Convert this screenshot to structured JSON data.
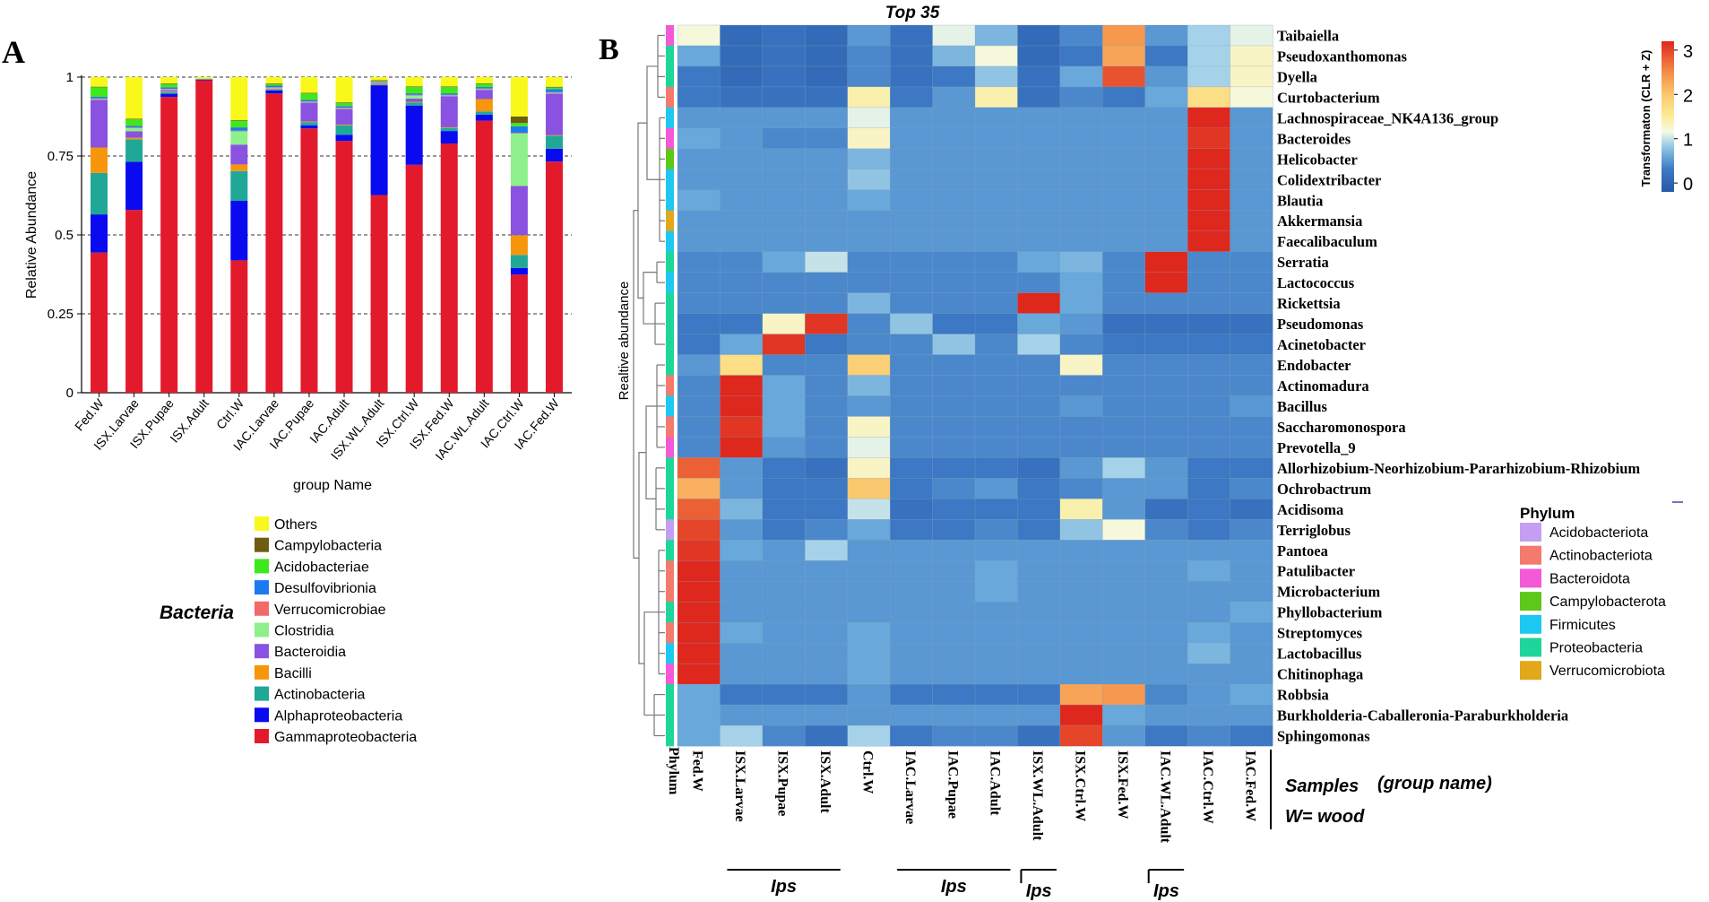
{
  "chart_data": [
    {
      "type": "bar",
      "panel_label": "A",
      "stacked": true,
      "ylabel": "Relative Abundance",
      "xlabel": "group Name",
      "ylim": [
        0,
        1
      ],
      "yticks": [
        "0",
        "0.25",
        "0.5",
        "0.75",
        "1"
      ],
      "legend_title": "Bacteria",
      "legend_placement": "bottom",
      "categories": [
        "Fed.W",
        "ISX.Larvae",
        "ISX.Pupae",
        "ISX.Adult",
        "Ctrl.W",
        "IAC.Larvae",
        "IAC.Pupae",
        "IAC.Adult",
        "ISX.WL.Adult",
        "ISX.Ctrl.W",
        "ISX.Fed.W",
        "IAC.WL.Adult",
        "IAC.Ctrl.W",
        "IAC.Fed.W"
      ],
      "series": [
        {
          "name": "Gammaproteobacteria",
          "color": "#e31a2c",
          "values": [
            0.44,
            0.57,
            0.94,
            0.99,
            0.4,
            0.95,
            0.84,
            0.8,
            0.63,
            0.73,
            0.8,
            0.88,
            0.36,
            0.72
          ]
        },
        {
          "name": "Alphaproteobacteria",
          "color": "#0a0af0",
          "values": [
            0.12,
            0.15,
            0.01,
            0.002,
            0.18,
            0.01,
            0.01,
            0.02,
            0.35,
            0.19,
            0.04,
            0.02,
            0.02,
            0.04
          ]
        },
        {
          "name": "Actinobacteria",
          "color": "#1fa898",
          "values": [
            0.13,
            0.07,
            0.005,
            0.002,
            0.09,
            0.002,
            0.01,
            0.03,
            0.002,
            0.01,
            0.01,
            0.01,
            0.04,
            0.04
          ]
        },
        {
          "name": "Bacilli",
          "color": "#f7960a",
          "values": [
            0.08,
            0.005,
            0.002,
            0,
            0.02,
            0.002,
            0.002,
            0.002,
            0.002,
            0.002,
            0.002,
            0.04,
            0.06,
            0.002
          ]
        },
        {
          "name": "Bacteroidia",
          "color": "#8a52e0",
          "values": [
            0.15,
            0.02,
            0.005,
            0.001,
            0.06,
            0.002,
            0.06,
            0.05,
            0.002,
            0.01,
            0.1,
            0.03,
            0.15,
            0.13
          ]
        },
        {
          "name": "Clostridia",
          "color": "#8ef08a",
          "values": [
            0.002,
            0.01,
            0.002,
            0,
            0.04,
            0.002,
            0.002,
            0.002,
            0.002,
            0.01,
            0.002,
            0.002,
            0.16,
            0.002
          ]
        },
        {
          "name": "Verrucomicrobiae",
          "color": "#f06a6a",
          "values": [
            0.002,
            0.002,
            0.002,
            0,
            0.002,
            0.002,
            0.002,
            0.002,
            0.002,
            0.002,
            0.002,
            0.002,
            0.002,
            0.002
          ]
        },
        {
          "name": "Desulfovibrionia",
          "color": "#1a7cf0",
          "values": [
            0.005,
            0.005,
            0.005,
            0,
            0.01,
            0.005,
            0.005,
            0.005,
            0.002,
            0.005,
            0.005,
            0.005,
            0.02,
            0.01
          ]
        },
        {
          "name": "Acidobacteriae",
          "color": "#3ee81a",
          "values": [
            0.03,
            0.02,
            0.01,
            0,
            0.02,
            0.005,
            0.02,
            0.01,
            0.002,
            0.02,
            0.02,
            0.01,
            0.01,
            0.005
          ]
        },
        {
          "name": "Campylobacteria",
          "color": "#6e5c10",
          "values": [
            0.002,
            0.002,
            0.002,
            0,
            0.002,
            0.002,
            0.002,
            0.002,
            0.002,
            0.002,
            0.002,
            0.002,
            0.02,
            0.002
          ]
        },
        {
          "name": "Others",
          "color": "#f8f81a",
          "values": [
            0.03,
            0.13,
            0.02,
            0.005,
            0.13,
            0.02,
            0.05,
            0.08,
            0.01,
            0.03,
            0.03,
            0.02,
            0.12,
            0.03
          ]
        }
      ]
    },
    {
      "type": "heatmap",
      "panel_label": "B",
      "title": "Top 35",
      "ylabel": "Realtive abundance",
      "colorbar_label": "Transformaton (CLR + Z)",
      "colorbar_ticks": [
        "0",
        "1",
        "2",
        "3"
      ],
      "colorbar_range": [
        -0.2,
        3.2
      ],
      "phylum_axis_label": "Phylum",
      "legend_title": "Phylum",
      "legend_entries": [
        {
          "name": "Acidobacteriota",
          "color": "#c49ef2"
        },
        {
          "name": "Actinobacteriota",
          "color": "#f47a6e"
        },
        {
          "name": "Bacteroidota",
          "color": "#f45ad6"
        },
        {
          "name": "Campylobacterota",
          "color": "#5ec81a"
        },
        {
          "name": "Firmicutes",
          "color": "#1ec8f0"
        },
        {
          "name": "Proteobacteria",
          "color": "#1ed69a"
        },
        {
          "name": "Verrucomicrobiota",
          "color": "#e0a81a"
        }
      ],
      "columns": [
        "Fed.W",
        "ISX.Larvae",
        "ISX.Pupae",
        "ISX.Adult",
        "Ctrl.W",
        "IAC.Larvae",
        "IAC.Pupae",
        "IAC.Adult",
        "ISX.WL.Adult",
        "ISX.Ctrl.W",
        "ISX.Fed.W",
        "IAC.WL.Adult",
        "IAC.Ctrl.W",
        "IAC.Fed.W"
      ],
      "rows": [
        "Taibaiella",
        "Pseudoxanthomonas",
        "Dyella",
        "Curtobacterium",
        "Lachnospiraceae_NK4A136_group",
        "Bacteroides",
        "Helicobacter",
        "Colidextribacter",
        "Blautia",
        "Akkermansia",
        "Faecalibaculum",
        "Serratia",
        "Lactococcus",
        "Rickettsia",
        "Pseudomonas",
        "Acinetobacter",
        "Endobacter",
        "Actinomadura",
        "Bacillus",
        "Saccharomonospora",
        "Prevotella_9",
        "Allorhizobium-Neorhizobium-Pararhizobium-Rhizobium",
        "Ochrobactrum",
        "Acidisoma",
        "Terriglobus",
        "Pantoea",
        "Patulibacter",
        "Microbacterium",
        "Phyllobacterium",
        "Streptomyces",
        "Lactobacillus",
        "Chitinophaga",
        "Robbsia",
        "Burkholderia-Caballeronia-Paraburkholderia",
        "Sphingomonas"
      ],
      "row_phyla": [
        "Bacteroidota",
        "Proteobacteria",
        "Proteobacteria",
        "Actinobacteriota",
        "Firmicutes",
        "Bacteroidota",
        "Campylobacterota",
        "Firmicutes",
        "Firmicutes",
        "Verrucomicrobiota",
        "Firmicutes",
        "Proteobacteria",
        "Firmicutes",
        "Proteobacteria",
        "Proteobacteria",
        "Proteobacteria",
        "Proteobacteria",
        "Actinobacteriota",
        "Firmicutes",
        "Actinobacteriota",
        "Bacteroidota",
        "Proteobacteria",
        "Proteobacteria",
        "Proteobacteria",
        "Acidobacteriota",
        "Proteobacteria",
        "Actinobacteriota",
        "Actinobacteriota",
        "Proteobacteria",
        "Actinobacteriota",
        "Firmicutes",
        "Bacteroidota",
        "Proteobacteria",
        "Proteobacteria",
        "Proteobacteria"
      ],
      "values": [
        [
          1.2,
          0.1,
          0.2,
          0.1,
          0.5,
          0.2,
          1.1,
          0.7,
          0.1,
          0.4,
          2.4,
          0.5,
          0.9,
          1.1
        ],
        [
          0.6,
          0.1,
          0.2,
          0.1,
          0.4,
          0.2,
          0.7,
          1.2,
          0.1,
          0.3,
          2.3,
          0.3,
          0.9,
          1.3
        ],
        [
          0.3,
          0.1,
          0.2,
          0.1,
          0.4,
          0.2,
          0.3,
          0.8,
          0.2,
          0.6,
          2.9,
          0.5,
          0.9,
          1.3
        ],
        [
          0.3,
          0.2,
          0.2,
          0.2,
          1.4,
          0.3,
          0.5,
          1.4,
          0.2,
          0.4,
          0.3,
          0.6,
          1.7,
          1.2
        ],
        [
          0.5,
          0.5,
          0.5,
          0.5,
          1.1,
          0.5,
          0.5,
          0.5,
          0.5,
          0.5,
          0.5,
          0.5,
          3.2,
          0.5
        ],
        [
          0.6,
          0.5,
          0.4,
          0.4,
          1.3,
          0.5,
          0.5,
          0.5,
          0.5,
          0.5,
          0.5,
          0.5,
          3.1,
          0.5
        ],
        [
          0.5,
          0.5,
          0.5,
          0.5,
          0.7,
          0.5,
          0.5,
          0.5,
          0.5,
          0.5,
          0.5,
          0.5,
          3.2,
          0.5
        ],
        [
          0.5,
          0.5,
          0.5,
          0.5,
          0.8,
          0.5,
          0.5,
          0.5,
          0.5,
          0.5,
          0.5,
          0.5,
          3.2,
          0.5
        ],
        [
          0.6,
          0.5,
          0.5,
          0.5,
          0.6,
          0.5,
          0.5,
          0.5,
          0.5,
          0.5,
          0.5,
          0.5,
          3.2,
          0.5
        ],
        [
          0.5,
          0.5,
          0.5,
          0.5,
          0.5,
          0.5,
          0.5,
          0.5,
          0.5,
          0.5,
          0.5,
          0.5,
          3.2,
          0.5
        ],
        [
          0.5,
          0.5,
          0.5,
          0.5,
          0.5,
          0.5,
          0.5,
          0.5,
          0.5,
          0.5,
          0.5,
          0.5,
          3.2,
          0.5
        ],
        [
          0.4,
          0.4,
          0.6,
          1.0,
          0.4,
          0.4,
          0.4,
          0.4,
          0.6,
          0.7,
          0.4,
          3.2,
          0.4,
          0.4
        ],
        [
          0.4,
          0.4,
          0.4,
          0.4,
          0.4,
          0.4,
          0.4,
          0.4,
          0.4,
          0.6,
          0.4,
          3.2,
          0.4,
          0.4
        ],
        [
          0.4,
          0.4,
          0.4,
          0.4,
          0.7,
          0.4,
          0.4,
          0.4,
          3.2,
          0.6,
          0.4,
          0.4,
          0.4,
          0.4
        ],
        [
          0.3,
          0.3,
          1.3,
          3.1,
          0.4,
          0.8,
          0.3,
          0.3,
          0.6,
          0.5,
          0.2,
          0.2,
          0.2,
          0.2
        ],
        [
          0.3,
          0.6,
          3.1,
          0.3,
          0.4,
          0.4,
          0.8,
          0.4,
          0.9,
          0.4,
          0.3,
          0.3,
          0.3,
          0.3
        ],
        [
          0.5,
          1.7,
          0.4,
          0.4,
          1.9,
          0.4,
          0.4,
          0.4,
          0.4,
          1.3,
          0.4,
          0.4,
          0.4,
          0.4
        ],
        [
          0.4,
          3.2,
          0.6,
          0.4,
          0.7,
          0.4,
          0.4,
          0.4,
          0.4,
          0.4,
          0.4,
          0.4,
          0.4,
          0.4
        ],
        [
          0.4,
          3.2,
          0.6,
          0.4,
          0.5,
          0.4,
          0.4,
          0.4,
          0.4,
          0.5,
          0.4,
          0.4,
          0.4,
          0.5
        ],
        [
          0.4,
          3.1,
          0.6,
          0.4,
          1.3,
          0.4,
          0.4,
          0.4,
          0.4,
          0.4,
          0.4,
          0.4,
          0.4,
          0.4
        ],
        [
          0.4,
          3.2,
          0.5,
          0.4,
          1.1,
          0.4,
          0.4,
          0.4,
          0.4,
          0.4,
          0.4,
          0.4,
          0.4,
          0.4
        ],
        [
          2.8,
          0.5,
          0.3,
          0.2,
          1.3,
          0.3,
          0.3,
          0.3,
          0.2,
          0.5,
          0.9,
          0.5,
          0.3,
          0.3
        ],
        [
          2.2,
          0.5,
          0.3,
          0.3,
          2.0,
          0.3,
          0.4,
          0.5,
          0.3,
          0.4,
          0.5,
          0.5,
          0.3,
          0.4
        ],
        [
          2.8,
          0.7,
          0.3,
          0.3,
          1.0,
          0.2,
          0.3,
          0.3,
          0.3,
          1.4,
          0.5,
          0.2,
          0.3,
          0.2
        ],
        [
          3.0,
          0.5,
          0.3,
          0.4,
          0.6,
          0.3,
          0.3,
          0.4,
          0.3,
          0.8,
          1.2,
          0.4,
          0.3,
          0.4
        ],
        [
          3.1,
          0.6,
          0.5,
          0.9,
          0.5,
          0.5,
          0.5,
          0.5,
          0.5,
          0.5,
          0.5,
          0.5,
          0.5,
          0.5
        ],
        [
          3.2,
          0.5,
          0.5,
          0.5,
          0.5,
          0.5,
          0.5,
          0.6,
          0.5,
          0.5,
          0.5,
          0.5,
          0.6,
          0.5
        ],
        [
          3.2,
          0.5,
          0.5,
          0.5,
          0.5,
          0.5,
          0.5,
          0.6,
          0.5,
          0.5,
          0.5,
          0.5,
          0.5,
          0.5
        ],
        [
          3.2,
          0.5,
          0.5,
          0.5,
          0.5,
          0.5,
          0.5,
          0.5,
          0.5,
          0.5,
          0.5,
          0.5,
          0.5,
          0.6
        ],
        [
          3.2,
          0.6,
          0.5,
          0.5,
          0.6,
          0.5,
          0.5,
          0.5,
          0.5,
          0.5,
          0.5,
          0.5,
          0.6,
          0.5
        ],
        [
          3.2,
          0.5,
          0.5,
          0.5,
          0.6,
          0.5,
          0.5,
          0.5,
          0.5,
          0.5,
          0.5,
          0.5,
          0.7,
          0.5
        ],
        [
          3.2,
          0.5,
          0.5,
          0.5,
          0.6,
          0.5,
          0.5,
          0.5,
          0.5,
          0.5,
          0.5,
          0.5,
          0.5,
          0.5
        ],
        [
          0.6,
          0.3,
          0.3,
          0.3,
          0.5,
          0.3,
          0.3,
          0.3,
          0.3,
          2.3,
          2.4,
          0.4,
          0.5,
          0.6
        ],
        [
          0.6,
          0.5,
          0.5,
          0.5,
          0.5,
          0.5,
          0.5,
          0.5,
          0.5,
          3.2,
          0.6,
          0.5,
          0.5,
          0.5
        ],
        [
          0.6,
          0.9,
          0.4,
          0.2,
          0.9,
          0.3,
          0.4,
          0.4,
          0.2,
          3.0,
          0.5,
          0.3,
          0.4,
          0.3
        ]
      ],
      "annotations": {
        "samples_label": "Samples",
        "group_label": "(group name)",
        "wood_note": "W= wood",
        "ips_label": "Ips"
      }
    }
  ]
}
